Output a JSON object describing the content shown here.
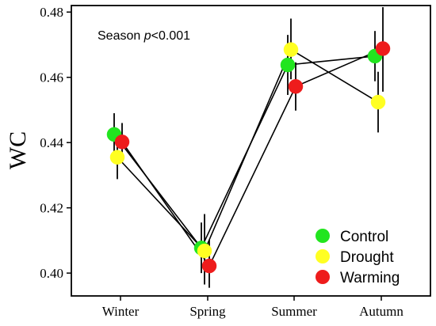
{
  "chart_data": {
    "type": "scatter",
    "ylabel": "WC",
    "xlabel": "",
    "categories": [
      "Winter",
      "Spring",
      "Summer",
      "Autumn"
    ],
    "ylim": [
      0.393,
      0.482
    ],
    "yticks": [
      0.4,
      0.42,
      0.44,
      0.46,
      0.48
    ],
    "ytick_labels": [
      "0.40",
      "0.42",
      "0.44",
      "0.46",
      "0.48"
    ],
    "grid": false,
    "legend_position": "bottom-right",
    "annotation": {
      "prefix": "Season ",
      "italic": "p",
      "suffix": "<0.001"
    },
    "series": [
      {
        "name": "Control",
        "color": "#22e51f",
        "values": [
          0.4425,
          0.4077,
          0.4638,
          0.4665
        ],
        "error_low": [
          0.4358,
          0.4,
          0.4546,
          0.4588
        ],
        "error_high": [
          0.449,
          0.4155,
          0.473,
          0.4742
        ]
      },
      {
        "name": "Drought",
        "color": "#ffff22",
        "values": [
          0.4355,
          0.4068,
          0.4685,
          0.4524
        ],
        "error_low": [
          0.4288,
          0.3965,
          0.4594,
          0.4431
        ],
        "error_high": [
          0.442,
          0.4181,
          0.478,
          0.4617
        ]
      },
      {
        "name": "Warming",
        "color": "#ee1c1c",
        "values": [
          0.4402,
          0.4022,
          0.4572,
          0.4688
        ],
        "error_low": [
          0.4346,
          0.3955,
          0.4498,
          0.4556
        ],
        "error_high": [
          0.446,
          0.4102,
          0.4646,
          0.4815
        ]
      }
    ]
  }
}
